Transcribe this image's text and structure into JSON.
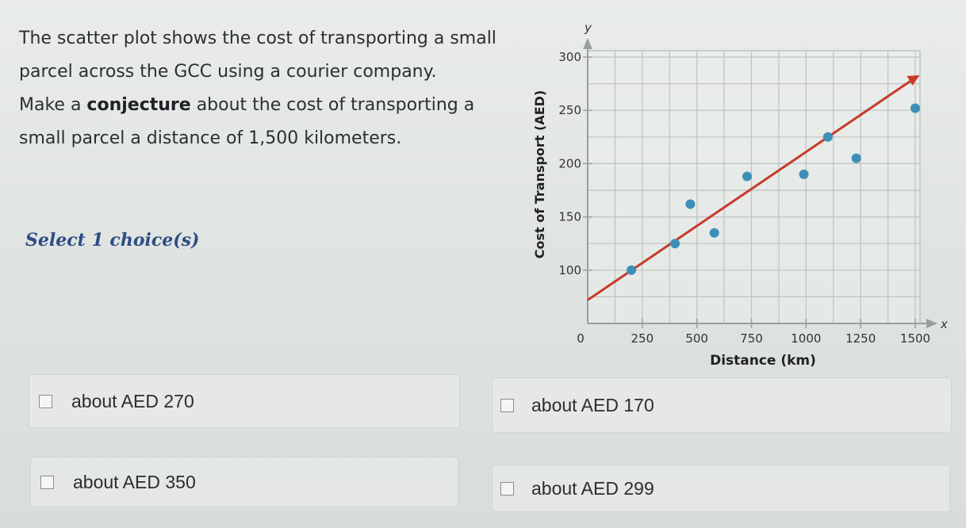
{
  "question": {
    "line1": "The scatter plot shows the cost of transporting a small",
    "line2": "parcel across the GCC using a courier company.",
    "line3_pre": "Make a ",
    "line3_bold": "conjecture",
    "line3_post": " about the cost of transporting a",
    "line4": "small parcel a distance of 1,500 kilometers."
  },
  "select_prompt": "Select 1 choice(s)",
  "choices": [
    {
      "label": "about AED 270"
    },
    {
      "label": "about AED 170"
    },
    {
      "label": "about AED 350"
    },
    {
      "label": "about AED 299"
    }
  ],
  "chart_data": {
    "type": "scatter",
    "xlabel": "Distance (km)",
    "ylabel": "Cost of Transport (AED)",
    "x_axis_letter": "x",
    "y_axis_letter": "y",
    "xlim": [
      0,
      1500
    ],
    "ylim": [
      50,
      300
    ],
    "x_ticks": [
      0,
      250,
      500,
      750,
      1000,
      1250,
      1500
    ],
    "y_ticks": [
      100,
      150,
      200,
      250,
      300
    ],
    "grid": true,
    "points": [
      {
        "x": 200,
        "y": 100
      },
      {
        "x": 400,
        "y": 125
      },
      {
        "x": 470,
        "y": 162
      },
      {
        "x": 580,
        "y": 135
      },
      {
        "x": 730,
        "y": 188
      },
      {
        "x": 990,
        "y": 190
      },
      {
        "x": 1100,
        "y": 225
      },
      {
        "x": 1230,
        "y": 205
      },
      {
        "x": 1500,
        "y": 252
      }
    ],
    "trend_line": {
      "from": {
        "x": 0,
        "y": 72
      },
      "to": {
        "x": 1520,
        "y": 283
      }
    },
    "colors": {
      "points": "#3e8fb8",
      "trend": "#c9392b",
      "grid": "#bfc3c0",
      "axis": "#9a9e9c"
    }
  }
}
